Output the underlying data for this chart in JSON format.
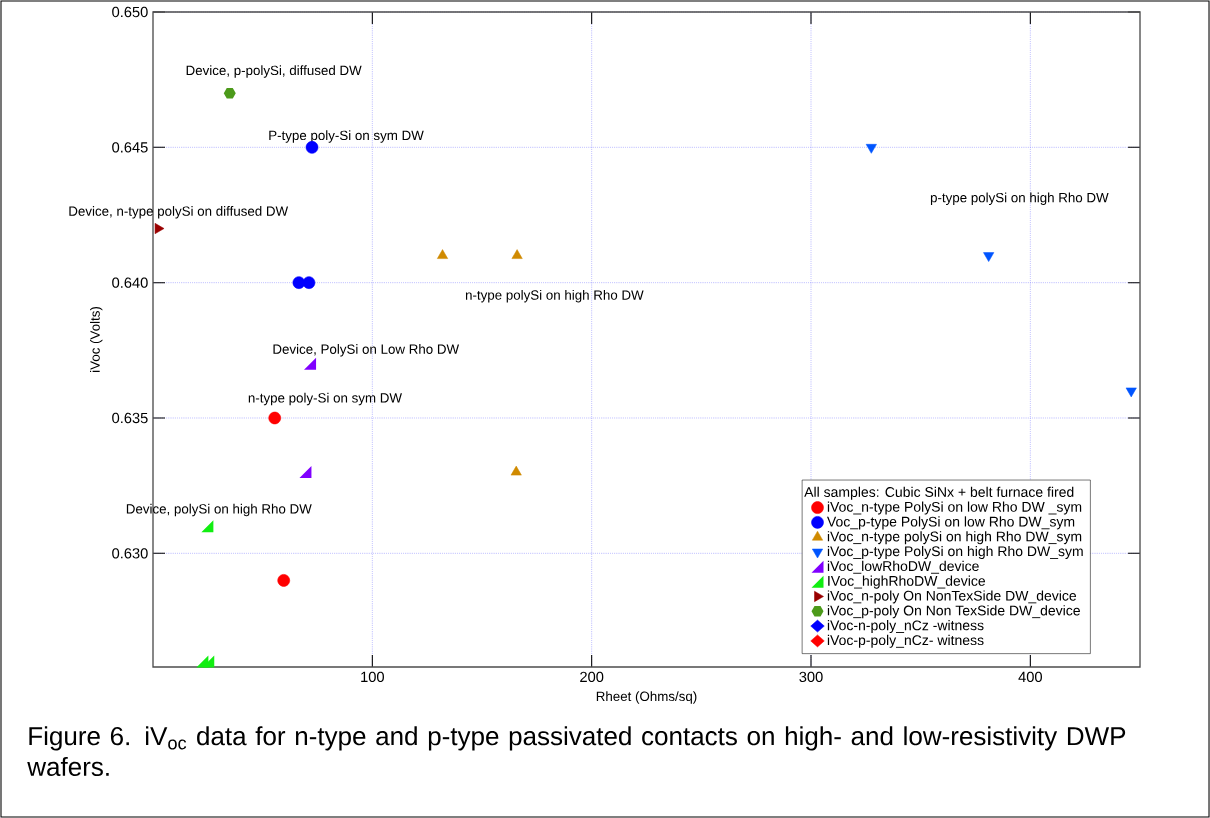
{
  "chart_data": {
    "type": "scatter",
    "xlabel": "Rheet (Ohms/sq)",
    "ylabel": "iVoc (Volts)",
    "legend_title": "All samples: Cubic SiNx + belt furnace fired",
    "xlim": [
      0,
      450
    ],
    "ylim": [
      0.6258,
      0.65
    ],
    "xticks": [
      100,
      200,
      300,
      400
    ],
    "yticks": [
      {
        "value": 0.63,
        "label": "0.630"
      },
      {
        "value": 0.635,
        "label": "0.635"
      },
      {
        "value": 0.64,
        "label": "0.640"
      },
      {
        "value": 0.645,
        "label": "0.645"
      },
      {
        "value": 0.65,
        "label": "0.650"
      }
    ],
    "grid": true,
    "legend": "bottom right",
    "series": [
      {
        "name": "iVoc_n-type PolySi on low Rho DW _sym",
        "color": "#ff0000",
        "marker": "circle",
        "x": [
          55.5,
          59.6
        ],
        "values": [
          0.635,
          0.629
        ]
      },
      {
        "name": "Voc_p-type PolySi on low Rho DW_sym",
        "color": "#0000ff",
        "marker": "circle",
        "x": [
          72.5,
          66.5,
          71.1
        ],
        "values": [
          0.645,
          0.64,
          0.64
        ]
      },
      {
        "name": "iVoc_n-type polySi on high Rho DW_sym",
        "color": "#d08a00",
        "marker": "triangle",
        "x": [
          132,
          166,
          165.6
        ],
        "values": [
          0.641,
          0.641,
          0.633
        ]
      },
      {
        "name": "iVoc_p-type PolySi on high Rho DW_sym",
        "color": "#0055ff",
        "marker": "triangle_down",
        "x": [
          327.5,
          381,
          446
        ],
        "values": [
          0.645,
          0.641,
          0.636
        ]
      },
      {
        "name": "iVoc_lowRhoDW_device",
        "color": "#8000ff",
        "marker": "triangle",
        "x": [
          71.6,
          69.5
        ],
        "values": [
          0.637,
          0.633
        ]
      },
      {
        "name": "IVoc_highRhoDW_device",
        "color": "#11ee11",
        "marker": "triangle",
        "x": [
          24.8,
          22.5,
          25.2
        ],
        "values": [
          0.631,
          0.626,
          0.626
        ]
      },
      {
        "name": "iVoc_n-poly On NonTexSide DW_device",
        "color": "#990000",
        "marker": "triangle_right",
        "x": [
          2.3
        ],
        "values": [
          0.642
        ]
      },
      {
        "name": "iVoc_p-poly On Non TexSide DW_device",
        "color": "#4c9a1a",
        "marker": "circle",
        "x": [
          35
        ],
        "values": [
          0.647
        ]
      },
      {
        "name": "iVoc-n-poly_nCz -witness",
        "color": "#0000ff",
        "marker": "diamond"
      },
      {
        "name": "iVoc-p-poly_nCz- witness",
        "color": "#ff0000",
        "marker": "diamond"
      }
    ],
    "annotations": [
      "Device,  p-polySi,  diffused DW",
      "P-type poly-Si on sym DW",
      "Device, n-type polySi on diffused DW",
      "p-type polySi on high Rho DW",
      "n-type polySi on high Rho DW",
      "Device, PolySi on Low Rho DW",
      "n-type poly-Si on sym DW",
      "Device, polySi on high Rho DW",
      "Figure 6. iV$_{oc}$ data for n-type and p-type passivated contacts on high- and low-resistivity DWP wafers."
    ]
  }
}
